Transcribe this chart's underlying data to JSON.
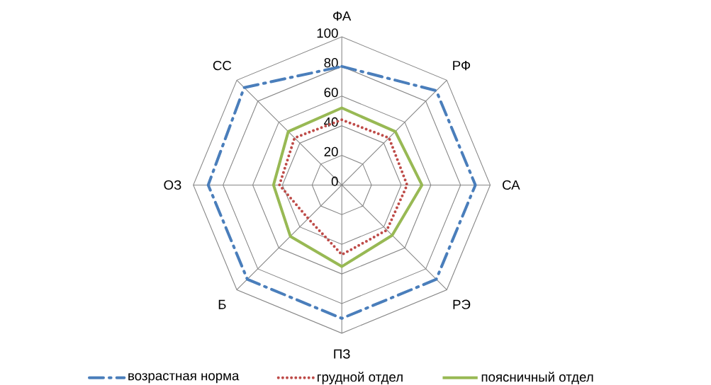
{
  "chart_data": {
    "type": "radar",
    "categories": [
      "ФА",
      "РФ",
      "СА",
      "РЭ",
      "ПЗ",
      "Б",
      "ОЗ",
      "СС"
    ],
    "series": [
      {
        "name": "возрастная норма",
        "color": "#4a7ebb",
        "line_style": "dashed",
        "values": [
          80,
          90,
          90,
          90,
          90,
          90,
          90,
          93
        ]
      },
      {
        "name": "грудной отдел",
        "color": "#be4b48",
        "line_style": "dotted",
        "values": [
          44,
          45,
          44,
          43,
          47,
          32,
          42,
          45
        ]
      },
      {
        "name": "поясничный отдел",
        "color": "#98b954",
        "line_style": "solid",
        "values": [
          52,
          51,
          54,
          48,
          55,
          49,
          46,
          51
        ]
      }
    ],
    "ylim": [
      0,
      100
    ],
    "yticks": [
      0,
      20,
      40,
      60,
      80,
      100
    ],
    "grid": true,
    "legend": "bottom"
  }
}
